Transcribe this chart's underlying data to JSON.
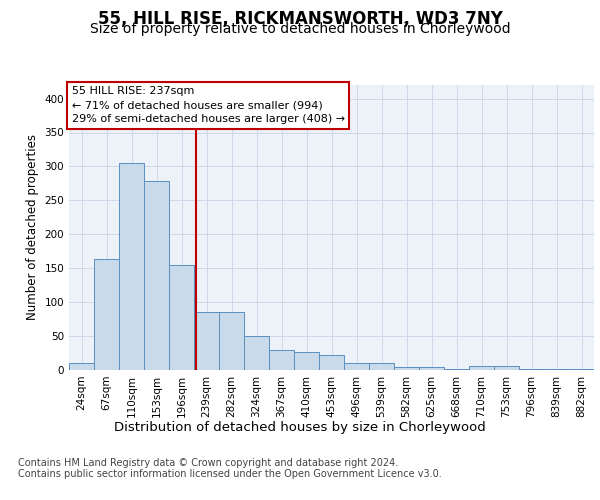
{
  "title1": "55, HILL RISE, RICKMANSWORTH, WD3 7NY",
  "title2": "Size of property relative to detached houses in Chorleywood",
  "xlabel": "Distribution of detached houses by size in Chorleywood",
  "ylabel": "Number of detached properties",
  "categories": [
    "24sqm",
    "67sqm",
    "110sqm",
    "153sqm",
    "196sqm",
    "239sqm",
    "282sqm",
    "324sqm",
    "367sqm",
    "410sqm",
    "453sqm",
    "496sqm",
    "539sqm",
    "582sqm",
    "625sqm",
    "668sqm",
    "710sqm",
    "753sqm",
    "796sqm",
    "839sqm",
    "882sqm"
  ],
  "values": [
    10,
    163,
    305,
    278,
    155,
    85,
    85,
    50,
    30,
    27,
    22,
    11,
    10,
    5,
    5,
    2,
    6,
    6,
    2,
    2,
    2
  ],
  "bar_color": "#c9daea",
  "bar_edge_color": "#5a8fc0",
  "grid_color": "#ccd8ea",
  "bg_color": "#edf2f8",
  "vline_x": 4.57,
  "vline_color": "#c00000",
  "annotation_text": "55 HILL RISE: 237sqm\n← 71% of detached houses are smaller (994)\n29% of semi-detached houses are larger (408) →",
  "annotation_box_color": "white",
  "annotation_box_edge": "#c00000",
  "ylim": [
    0,
    420
  ],
  "yticks": [
    0,
    50,
    100,
    150,
    200,
    250,
    300,
    350,
    400
  ],
  "footer1": "Contains HM Land Registry data © Crown copyright and database right 2024.",
  "footer2": "Contains public sector information licensed under the Open Government Licence v3.0.",
  "title1_fontsize": 12,
  "title2_fontsize": 10,
  "xlabel_fontsize": 9.5,
  "ylabel_fontsize": 8.5,
  "tick_fontsize": 7.5,
  "footer_fontsize": 7.0,
  "ann_fontsize": 8.0
}
